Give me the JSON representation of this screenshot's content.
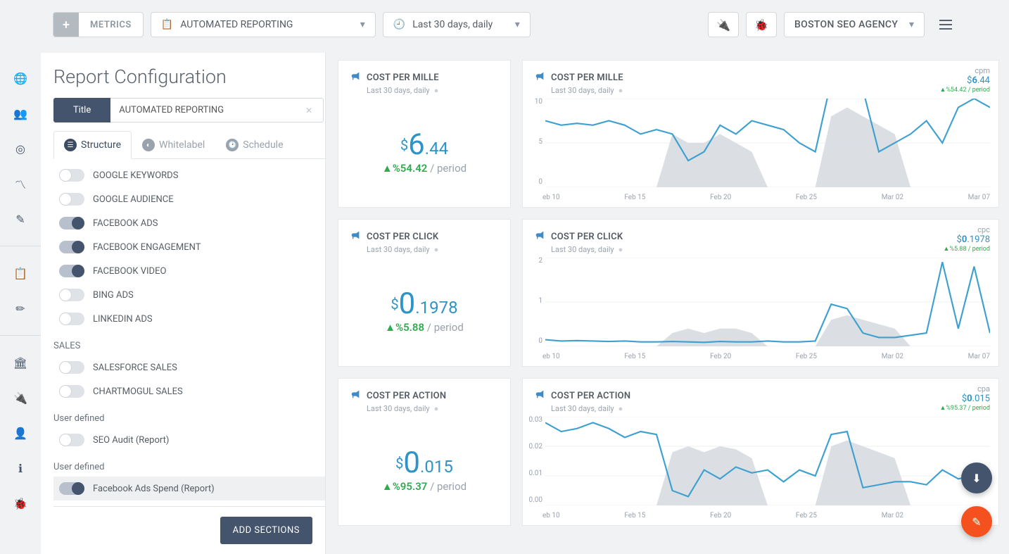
{
  "colors": {
    "accent": "#2e94c5",
    "green": "#2faa4e",
    "dark": "#44546d",
    "line": "#3ea0cf",
    "area": "#d7dce1",
    "grid": "#eef0f2",
    "orange": "#f4511e"
  },
  "topbar": {
    "metrics_label": "METRICS",
    "report_dropdown": "AUTOMATED REPORTING",
    "date_dropdown": "Last 30 days, daily",
    "agency_dropdown": "BOSTON SEO AGENCY"
  },
  "config": {
    "heading": "Report Configuration",
    "title_label": "Title",
    "title_value": "AUTOMATED REPORTING",
    "tabs": {
      "structure": "Structure",
      "whitelabel": "Whitelabel",
      "schedule": "Schedule"
    },
    "items_top": [
      {
        "label": "GOOGLE KEYWORDS",
        "on": false
      },
      {
        "label": "GOOGLE AUDIENCE",
        "on": false
      },
      {
        "label": "FACEBOOK ADS",
        "on": true
      },
      {
        "label": "FACEBOOK ENGAGEMENT",
        "on": true
      },
      {
        "label": "FACEBOOK VIDEO",
        "on": true
      },
      {
        "label": "BING ADS",
        "on": false
      },
      {
        "label": "LINKEDIN ADS",
        "on": false
      }
    ],
    "section_sales": "SALES",
    "items_sales": [
      {
        "label": "SALESFORCE SALES",
        "on": false
      },
      {
        "label": "CHARTMOGUL SALES",
        "on": false
      }
    ],
    "section_ud1": "User defined",
    "items_ud1": [
      {
        "label": "SEO Audit (Report)",
        "on": false
      }
    ],
    "section_ud2": "User defined",
    "items_ud2": [
      {
        "label": "Facebook Ads Spend (Report)",
        "on": true
      }
    ],
    "add_sections": "ADD SECTIONS"
  },
  "subline": "Last 30 days, daily",
  "period_suffix": " / period",
  "xlabels": [
    "eb 10",
    "Feb 15",
    "Feb 20",
    "Feb 25",
    "Mar 02",
    "Mar 07"
  ],
  "metrics": [
    {
      "title": "COST PER MILLE",
      "unit": "cpm",
      "value_cur": "$",
      "value_big": "6",
      "value_dec": ".44",
      "delta": "▲%54.42",
      "yticks": [
        "10",
        "5",
        "0"
      ],
      "line": [
        7.5,
        7,
        7.2,
        7,
        7.5,
        7,
        6,
        6.5,
        6,
        3,
        4,
        7,
        6,
        7.5,
        7,
        6.5,
        5,
        4,
        12,
        12,
        11,
        4,
        5,
        6,
        7.5,
        5,
        9,
        10,
        9
      ],
      "prev": [
        0,
        0,
        0,
        0,
        0,
        0,
        0,
        0,
        6,
        5,
        5,
        6,
        5,
        4,
        0,
        0,
        0,
        0,
        8,
        9,
        8,
        7,
        6,
        0,
        0,
        0,
        0,
        0,
        0
      ]
    },
    {
      "title": "COST PER CLICK",
      "unit": "cpc",
      "value_cur": "$",
      "value_big": "0",
      "value_dec": ".1978",
      "delta": "▲%5.88",
      "yticks": [
        "2",
        "1",
        "0"
      ],
      "line": [
        0.15,
        0.12,
        0.13,
        0.12,
        0.11,
        0.12,
        0.1,
        0.1,
        0.11,
        0.1,
        0.09,
        0.11,
        0.1,
        0.1,
        0.12,
        0.1,
        0.1,
        0.12,
        0.95,
        0.85,
        0.3,
        0.2,
        0.2,
        0.25,
        0.3,
        1.9,
        0.4,
        1.8,
        0.3
      ],
      "prev": [
        0,
        0,
        0,
        0,
        0,
        0,
        0,
        0,
        0.3,
        0.4,
        0.3,
        0.4,
        0.4,
        0.3,
        0,
        0,
        0,
        0,
        0.6,
        0.7,
        0.6,
        0.5,
        0.4,
        0,
        0,
        0,
        0,
        0,
        0
      ]
    },
    {
      "title": "COST PER ACTION",
      "unit": "cpa",
      "value_cur": "$",
      "value_big": "0",
      "value_dec": ".015",
      "delta": "▲%95.37",
      "yticks": [
        "0.03",
        "0.02",
        "0.01",
        "0.00"
      ],
      "line": [
        0.028,
        0.025,
        0.026,
        0.028,
        0.026,
        0.023,
        0.025,
        0.024,
        0.005,
        0.003,
        0.012,
        0.009,
        0.013,
        0.011,
        0.012,
        0.008,
        0.012,
        0.01,
        0.024,
        0.025,
        0.006,
        0.007,
        0.008,
        0.008,
        0.007,
        0.012,
        0.009,
        0.01,
        0.011
      ],
      "prev": [
        0,
        0,
        0,
        0,
        0,
        0,
        0,
        0,
        0.018,
        0.02,
        0.018,
        0.02,
        0.019,
        0.016,
        0,
        0,
        0,
        0,
        0.02,
        0.022,
        0.02,
        0.018,
        0.016,
        0,
        0,
        0,
        0,
        0,
        0
      ]
    }
  ]
}
